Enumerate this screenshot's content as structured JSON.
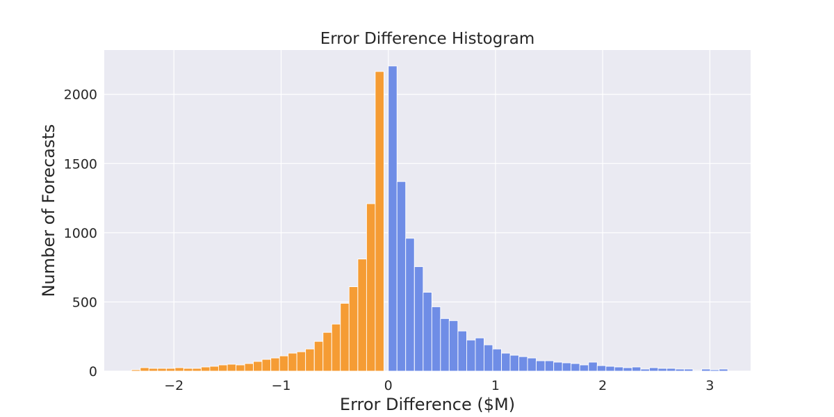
{
  "chart_data": {
    "type": "bar",
    "title": "Error Difference Histogram",
    "xlabel": "Error Difference ($M)",
    "ylabel": "Number of Forecasts",
    "xlim": [
      -2.65,
      3.38
    ],
    "ylim": [
      0,
      2320
    ],
    "bin_width": 0.0812,
    "x_ticks": [
      -2,
      -1,
      0,
      1,
      2,
      3
    ],
    "x_tick_labels": [
      "−2",
      "−1",
      "0",
      "1",
      "2",
      "3"
    ],
    "y_ticks": [
      0,
      500,
      1000,
      1500,
      2000
    ],
    "y_tick_labels": [
      "0",
      "500",
      "1000",
      "1500",
      "2000"
    ],
    "grid": true,
    "legend": "none",
    "colors": {
      "background": "#EAEAF2",
      "grid": "#FFFFFF",
      "negative": "#F59C34",
      "positive": "#6F8DE6",
      "text": "#262626"
    },
    "series": [
      {
        "color": "#F59C34",
        "bin_starts": [
          -2.396,
          -2.314,
          -2.233,
          -2.152,
          -2.071,
          -1.99,
          -1.908,
          -1.827,
          -1.746,
          -1.665,
          -1.584,
          -1.502,
          -1.421,
          -1.34,
          -1.259,
          -1.178,
          -1.096,
          -1.015,
          -0.934,
          -0.853,
          -0.772,
          -0.69,
          -0.609,
          -0.528,
          -0.447,
          -0.366,
          -0.284,
          -0.203,
          -0.122,
          -0.041
        ],
        "values": [
          10,
          25,
          20,
          20,
          20,
          25,
          20,
          20,
          30,
          35,
          45,
          50,
          45,
          55,
          70,
          85,
          95,
          110,
          130,
          140,
          160,
          215,
          280,
          340,
          490,
          610,
          810,
          1210,
          2165,
          0
        ]
      },
      {
        "color": "#6F8DE6",
        "bin_starts": [
          0.0,
          0.081,
          0.162,
          0.244,
          0.325,
          0.406,
          0.487,
          0.568,
          0.65,
          0.731,
          0.812,
          0.893,
          0.974,
          1.056,
          1.137,
          1.218,
          1.299,
          1.38,
          1.462,
          1.543,
          1.624,
          1.705,
          1.786,
          1.868,
          1.949,
          2.03,
          2.111,
          2.192,
          2.274,
          2.355,
          2.436,
          2.517,
          2.598,
          2.68,
          2.761,
          2.842,
          2.923,
          3.004,
          3.086
        ],
        "values": [
          2205,
          1370,
          960,
          755,
          570,
          465,
          380,
          365,
          290,
          225,
          240,
          190,
          160,
          130,
          115,
          105,
          95,
          75,
          75,
          65,
          60,
          55,
          45,
          65,
          40,
          35,
          30,
          25,
          30,
          15,
          25,
          20,
          20,
          15,
          15,
          5,
          15,
          10,
          15
        ]
      }
    ]
  }
}
